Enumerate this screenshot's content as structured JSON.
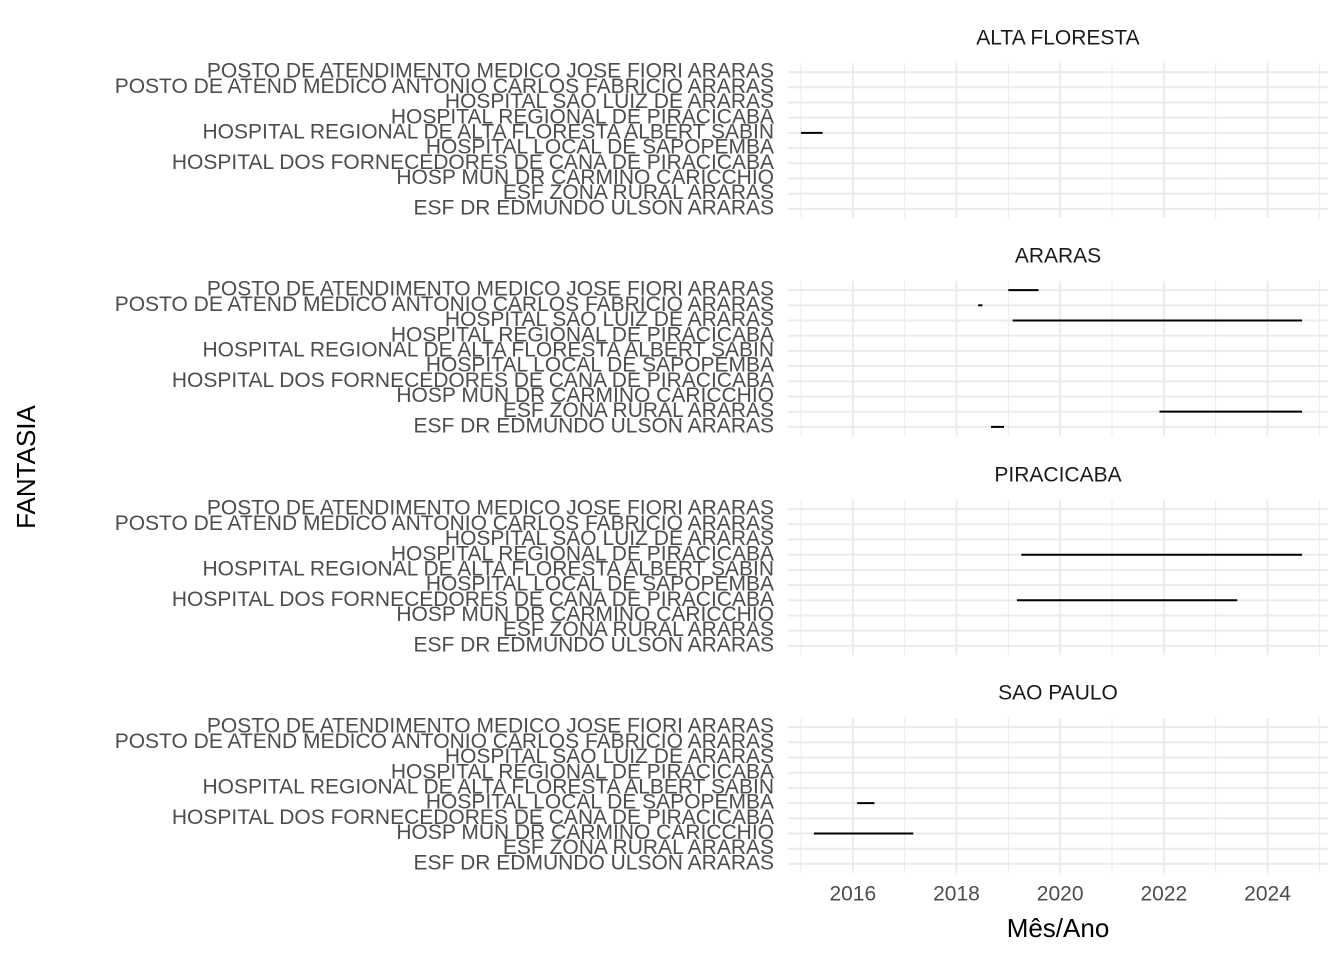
{
  "chart_data": {
    "type": "segment",
    "xlabel": "Mês/Ano",
    "ylabel": "FANTASIA",
    "x_ticks": [
      "2016",
      "2018",
      "2020",
      "2022",
      "2024"
    ],
    "xlim": [
      "2014-10-01",
      "2025-03-01"
    ],
    "grid": true,
    "categories": [
      "POSTO DE ATENDIMENTO MEDICO JOSE FIORI ARARAS",
      "POSTO DE ATEND MEDICO ANTONIO CARLOS FABRICIO ARARAS",
      "HOSPITAL SAO LUIZ DE ARARAS",
      "HOSPITAL REGIONAL DE PIRACICABA",
      "HOSPITAL REGIONAL DE ALTA FLORESTA ALBERT SABIN",
      "HOSPITAL LOCAL DE SAPOPEMBA",
      "HOSPITAL DOS FORNECEDORES DE CANA DE PIRACICABA",
      "HOSP MUN DR CARMINO CARICCHIO",
      "ESF ZONA RURAL ARARAS",
      "ESF DR EDMUNDO ULSON ARARAS"
    ],
    "panels": [
      {
        "title": "ALTA FLORESTA",
        "segments": [
          {
            "category": "HOSPITAL REGIONAL DE ALTA FLORESTA ALBERT SABIN",
            "start": "2015-01",
            "end": "2015-06"
          }
        ]
      },
      {
        "title": "ARARAS",
        "segments": [
          {
            "category": "POSTO DE ATENDIMENTO MEDICO JOSE FIORI ARARAS",
            "start": "2019-01",
            "end": "2019-08"
          },
          {
            "category": "POSTO DE ATEND MEDICO ANTONIO CARLOS FABRICIO ARARAS",
            "start": "2018-06",
            "end": "2018-07"
          },
          {
            "category": "HOSPITAL SAO LUIZ DE ARARAS",
            "start": "2019-02",
            "end": "2024-09"
          },
          {
            "category": "ESF ZONA RURAL ARARAS",
            "start": "2021-12",
            "end": "2024-09"
          },
          {
            "category": "ESF DR EDMUNDO ULSON ARARAS",
            "start": "2018-09",
            "end": "2018-12"
          }
        ]
      },
      {
        "title": "PIRACICABA",
        "segments": [
          {
            "category": "HOSPITAL REGIONAL DE PIRACICABA",
            "start": "2019-04",
            "end": "2024-09"
          },
          {
            "category": "HOSPITAL DOS FORNECEDORES DE CANA DE PIRACICABA",
            "start": "2019-03",
            "end": "2023-06"
          }
        ]
      },
      {
        "title": "SAO PAULO",
        "segments": [
          {
            "category": "HOSPITAL LOCAL DE SAPOPEMBA",
            "start": "2016-02",
            "end": "2016-06"
          },
          {
            "category": "HOSP MUN DR CARMINO CARICCHIO",
            "start": "2015-04",
            "end": "2017-03"
          }
        ]
      }
    ]
  }
}
